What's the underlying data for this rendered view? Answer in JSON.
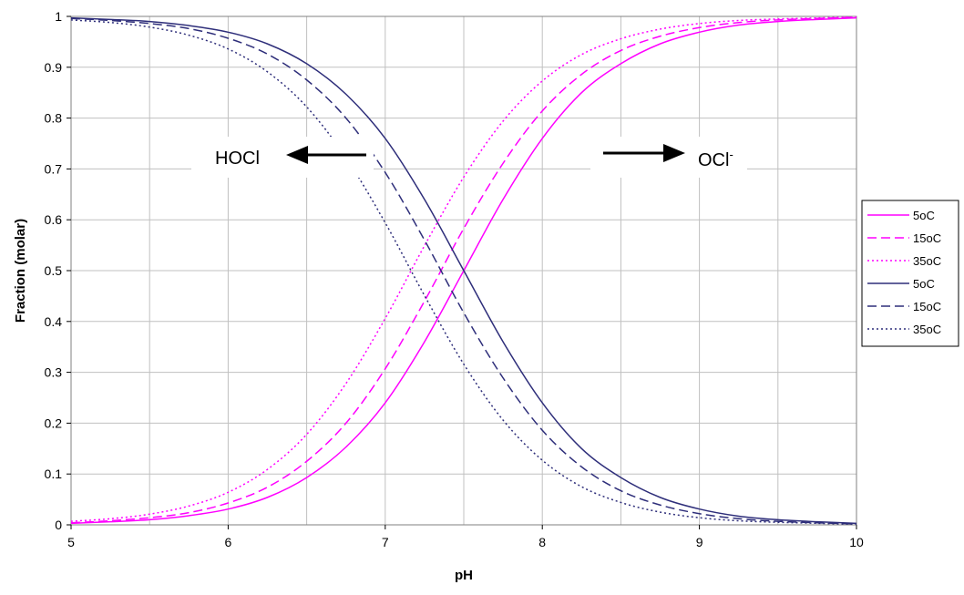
{
  "chart_data": {
    "type": "line",
    "title": "",
    "xlabel": "pH",
    "ylabel": "Fraction (molar)",
    "xlim": [
      5,
      10
    ],
    "ylim": [
      0,
      1
    ],
    "x_ticks": [
      "5",
      "6",
      "7",
      "8",
      "9",
      "10"
    ],
    "y_ticks": [
      "0",
      "0.1",
      "0.2",
      "0.3",
      "0.4",
      "0.5",
      "0.6",
      "0.7",
      "0.8",
      "0.9",
      "1"
    ],
    "grid": true,
    "legend_position": "right",
    "annotations": {
      "hocl": "HOCl",
      "ocl": "OCl",
      "ocl_superscript": "-"
    },
    "colors": {
      "ocl_series": "#ff00ff",
      "hocl_series": "#2e2e7a",
      "grid": "#c0c0c0"
    },
    "x": [
      5.0,
      5.25,
      5.5,
      5.75,
      6.0,
      6.25,
      6.5,
      6.75,
      7.0,
      7.25,
      7.5,
      7.75,
      8.0,
      8.25,
      8.5,
      8.75,
      9.0,
      9.25,
      9.5,
      9.75,
      10.0
    ],
    "series": [
      {
        "name": "5oC",
        "species": "OCl-",
        "dash": "solid",
        "values": [
          0.003,
          0.006,
          0.01,
          0.018,
          0.031,
          0.054,
          0.093,
          0.153,
          0.24,
          0.36,
          0.5,
          0.64,
          0.76,
          0.85,
          0.907,
          0.946,
          0.969,
          0.983,
          0.99,
          0.994,
          0.997
        ]
      },
      {
        "name": "15oC",
        "species": "OCl-",
        "dash": "dashed",
        "values": [
          0.004,
          0.008,
          0.014,
          0.024,
          0.043,
          0.074,
          0.125,
          0.2,
          0.307,
          0.44,
          0.583,
          0.711,
          0.814,
          0.886,
          0.933,
          0.961,
          0.978,
          0.988,
          0.993,
          0.996,
          0.998
        ]
      },
      {
        "name": "35oC",
        "species": "OCl-",
        "dash": "dotted",
        "values": [
          0.007,
          0.012,
          0.021,
          0.037,
          0.064,
          0.109,
          0.178,
          0.278,
          0.406,
          0.549,
          0.684,
          0.794,
          0.873,
          0.925,
          0.956,
          0.975,
          0.986,
          0.992,
          0.995,
          0.997,
          0.999
        ]
      },
      {
        "name": "5oC",
        "species": "HOCl",
        "dash": "solid",
        "values": [
          0.997,
          0.994,
          0.99,
          0.982,
          0.969,
          0.946,
          0.907,
          0.847,
          0.76,
          0.64,
          0.5,
          0.36,
          0.24,
          0.15,
          0.093,
          0.054,
          0.031,
          0.017,
          0.01,
          0.006,
          0.003
        ]
      },
      {
        "name": "15oC",
        "species": "HOCl",
        "dash": "dashed",
        "values": [
          0.996,
          0.992,
          0.986,
          0.976,
          0.957,
          0.926,
          0.875,
          0.8,
          0.693,
          0.56,
          0.417,
          0.289,
          0.186,
          0.114,
          0.067,
          0.039,
          0.022,
          0.012,
          0.007,
          0.004,
          0.002
        ]
      },
      {
        "name": "35oC",
        "species": "HOCl",
        "dash": "dotted",
        "values": [
          0.993,
          0.988,
          0.979,
          0.963,
          0.936,
          0.891,
          0.822,
          0.722,
          0.594,
          0.451,
          0.316,
          0.206,
          0.127,
          0.075,
          0.044,
          0.025,
          0.014,
          0.008,
          0.005,
          0.003,
          0.001
        ]
      }
    ]
  }
}
